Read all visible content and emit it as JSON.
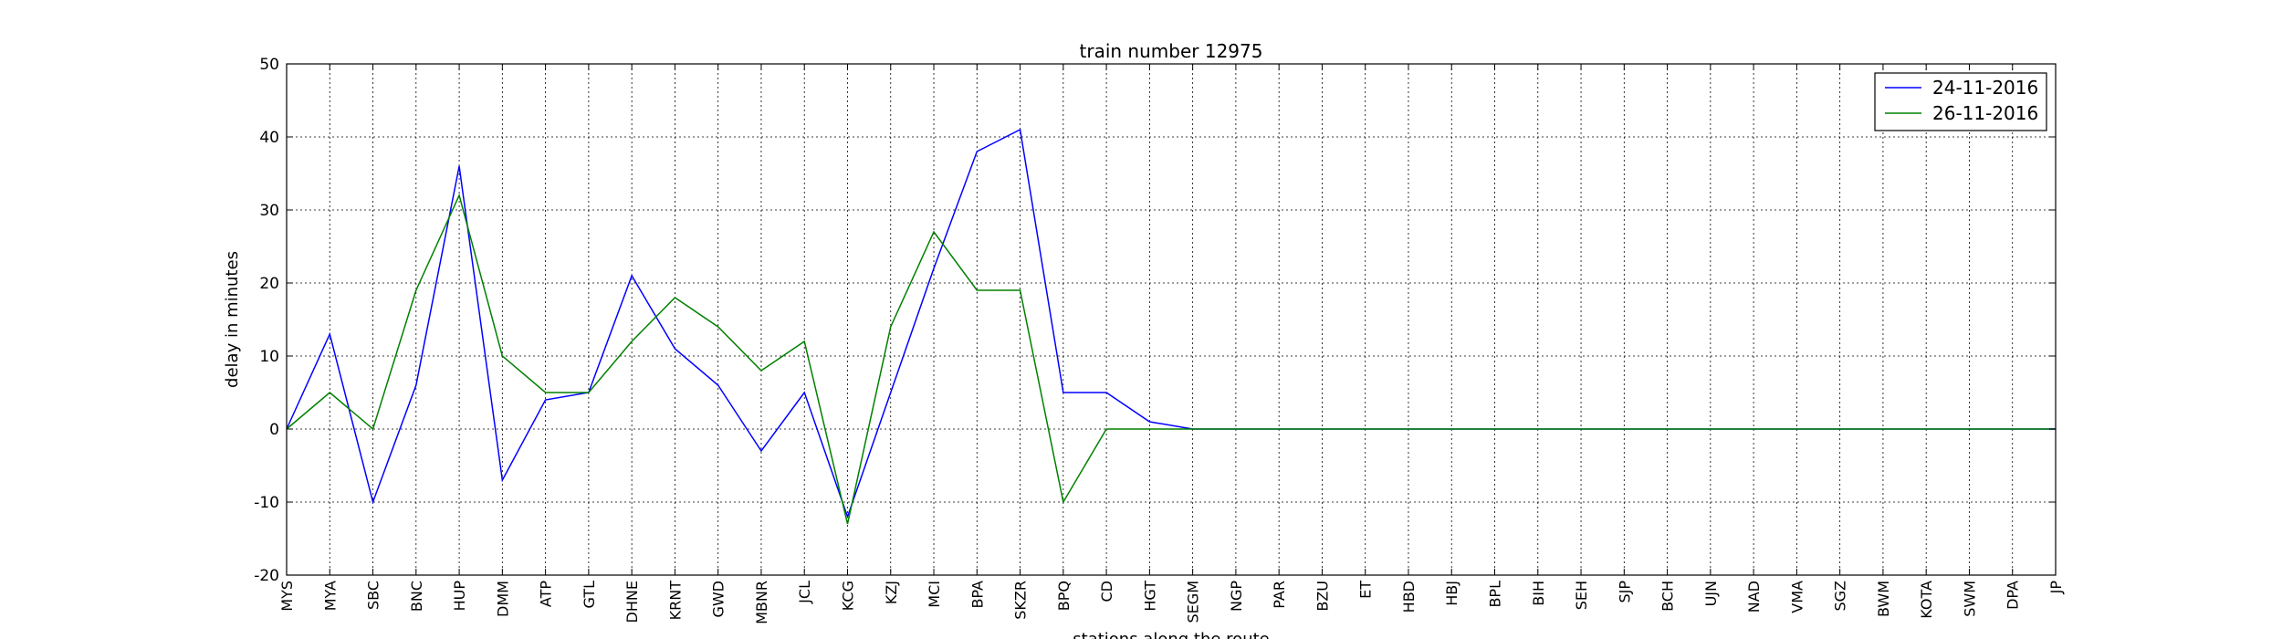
{
  "chart_data": {
    "type": "line",
    "title": "train number 12975",
    "xlabel": "stations along the route",
    "ylabel": "delay in minutes",
    "ylim": [
      -20,
      50
    ],
    "yticks": [
      -20,
      -10,
      0,
      10,
      20,
      30,
      40,
      50
    ],
    "grid": true,
    "legend_position": "top-right",
    "categories": [
      "MYS",
      "MYA",
      "SBC",
      "BNC",
      "HUP",
      "DMM",
      "ATP",
      "GTL",
      "DHNE",
      "KRNT",
      "GWD",
      "MBNR",
      "JCL",
      "KCG",
      "KZJ",
      "MCI",
      "BPA",
      "SKZR",
      "BPQ",
      "CD",
      "HGT",
      "SEGM",
      "NGP",
      "PAR",
      "BZU",
      "ET",
      "HBD",
      "HBJ",
      "BPL",
      "BIH",
      "SEH",
      "SJP",
      "BCH",
      "UJN",
      "NAD",
      "VMA",
      "SGZ",
      "BWM",
      "KOTA",
      "SWM",
      "DPA",
      "JP"
    ],
    "series": [
      {
        "name": "24-11-2016",
        "color": "#0000ff",
        "values": [
          0,
          13,
          -10,
          6,
          36,
          -7,
          4,
          5,
          21,
          11,
          6,
          -3,
          5,
          -12,
          5,
          22,
          38,
          41,
          5,
          5,
          1,
          0,
          0,
          0,
          0,
          0,
          0,
          0,
          0,
          0,
          0,
          0,
          0,
          0,
          0,
          0,
          0,
          0,
          0,
          0,
          0,
          0
        ]
      },
      {
        "name": "26-11-2016",
        "color": "#008000",
        "values": [
          0,
          5,
          0,
          19,
          32,
          10,
          5,
          5,
          12,
          18,
          14,
          8,
          12,
          -13,
          14,
          27,
          19,
          19,
          -10,
          0,
          0,
          0,
          0,
          0,
          0,
          0,
          0,
          0,
          0,
          0,
          0,
          0,
          0,
          0,
          0,
          0,
          0,
          0,
          0,
          0,
          0,
          0
        ]
      }
    ]
  }
}
